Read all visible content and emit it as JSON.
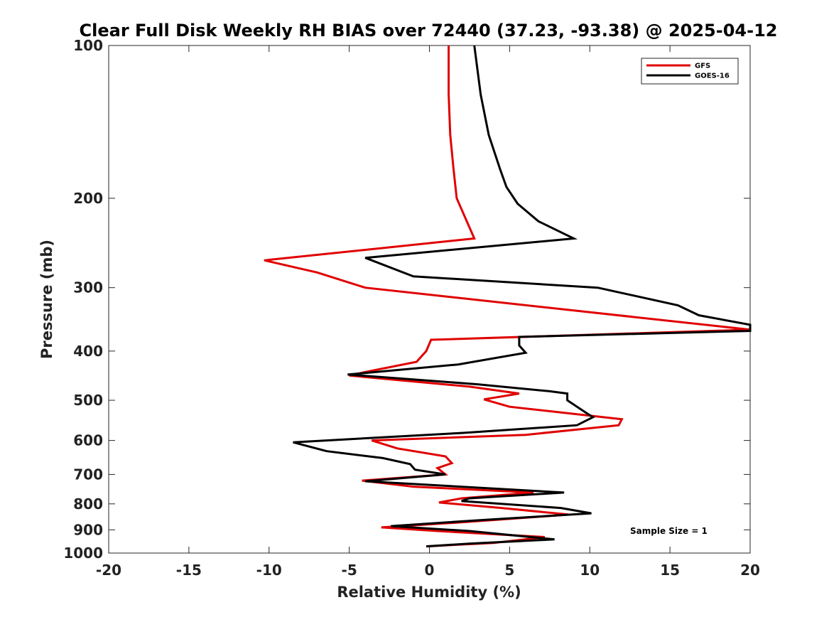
{
  "chart_data": {
    "type": "line",
    "title": "Clear Full Disk Weekly RH BIAS over 72440 (37.23, -93.38) @ 2025-04-12",
    "xlabel": "Relative Humidity (%)",
    "ylabel": "Pressure (mb)",
    "xlim": [
      -20,
      20
    ],
    "ylim": [
      100,
      1000
    ],
    "yscale": "log",
    "y_reversed": true,
    "xticks": [
      -20,
      -15,
      -10,
      -5,
      0,
      5,
      10,
      15,
      20
    ],
    "yticks": [
      100,
      200,
      300,
      400,
      500,
      600,
      700,
      800,
      900,
      1000
    ],
    "grid": false,
    "legend_position": "top-right",
    "annotation": "Sample Size = 1",
    "series": [
      {
        "name": "GFS",
        "color": "#e00000",
        "points": [
          [
            1.2,
            100
          ],
          [
            1.2,
            125
          ],
          [
            1.3,
            150
          ],
          [
            1.5,
            175
          ],
          [
            1.7,
            200
          ],
          [
            2.8,
            240
          ],
          [
            -10.3,
            265
          ],
          [
            -7.0,
            280
          ],
          [
            -4.0,
            300
          ],
          [
            20.0,
            363
          ],
          [
            0.1,
            380
          ],
          [
            -0.2,
            400
          ],
          [
            -0.8,
            420
          ],
          [
            -4.0,
            440
          ],
          [
            -5.0,
            447
          ],
          [
            2.5,
            470
          ],
          [
            5.6,
            485
          ],
          [
            3.4,
            498
          ],
          [
            5.0,
            515
          ],
          [
            12.0,
            545
          ],
          [
            11.8,
            560
          ],
          [
            6.0,
            585
          ],
          [
            -3.6,
            600
          ],
          [
            -2.0,
            622
          ],
          [
            1.0,
            645
          ],
          [
            1.4,
            665
          ],
          [
            0.5,
            680
          ],
          [
            1.0,
            700
          ],
          [
            -4.2,
            720
          ],
          [
            -1.0,
            740
          ],
          [
            6.5,
            760
          ],
          [
            2.0,
            780
          ],
          [
            0.6,
            795
          ],
          [
            4.5,
            815
          ],
          [
            8.7,
            840
          ],
          [
            2.0,
            870
          ],
          [
            -3.0,
            890
          ],
          [
            0.5,
            905
          ],
          [
            7.2,
            930
          ],
          [
            4.0,
            955
          ],
          [
            -0.2,
            970
          ]
        ]
      },
      {
        "name": "GOES-16",
        "color": "#000000",
        "points": [
          [
            2.8,
            100
          ],
          [
            3.2,
            125
          ],
          [
            3.7,
            150
          ],
          [
            4.4,
            175
          ],
          [
            4.8,
            190
          ],
          [
            5.5,
            205
          ],
          [
            6.8,
            222
          ],
          [
            9.0,
            240
          ],
          [
            -4.0,
            262
          ],
          [
            -1.0,
            285
          ],
          [
            10.5,
            300
          ],
          [
            15.5,
            325
          ],
          [
            16.8,
            340
          ],
          [
            20.0,
            355
          ],
          [
            20.0,
            365
          ],
          [
            5.6,
            375
          ],
          [
            5.6,
            390
          ],
          [
            6.0,
            403
          ],
          [
            1.8,
            425
          ],
          [
            -5.1,
            445
          ],
          [
            3.0,
            465
          ],
          [
            7.5,
            480
          ],
          [
            8.6,
            485
          ],
          [
            8.6,
            500
          ],
          [
            9.8,
            530
          ],
          [
            10.2,
            540
          ],
          [
            9.2,
            560
          ],
          [
            2.0,
            580
          ],
          [
            -8.5,
            605
          ],
          [
            -6.4,
            630
          ],
          [
            -2.9,
            650
          ],
          [
            -1.2,
            668
          ],
          [
            -0.9,
            685
          ],
          [
            1.0,
            700
          ],
          [
            -4.0,
            722
          ],
          [
            8.4,
            760
          ],
          [
            2.5,
            780
          ],
          [
            2.0,
            790
          ],
          [
            8.2,
            815
          ],
          [
            10.1,
            835
          ],
          [
            3.5,
            860
          ],
          [
            -2.4,
            885
          ],
          [
            2.5,
            905
          ],
          [
            7.8,
            940
          ],
          [
            2.5,
            958
          ],
          [
            -0.2,
            970
          ]
        ]
      }
    ]
  }
}
